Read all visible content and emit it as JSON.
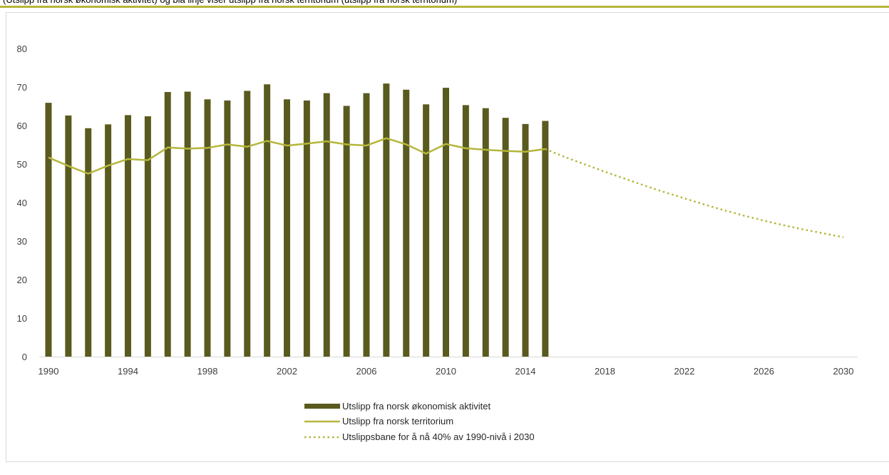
{
  "page": {
    "top_text": "(Utslipp fra norsk økonomisk aktivitet) og blå linje viser utslipp fra norsk territorium (utslipp fra norsk territorium)",
    "accent_color": "#b5b63c"
  },
  "colors": {
    "bar": "#595a1e",
    "line": "#b5b63c",
    "path": "#b5b63c",
    "axis": "#d9d9d9",
    "frame": "#d9d9d9"
  },
  "chart_data": {
    "type": "bar",
    "ylim": [
      0,
      80
    ],
    "yticks": [
      0,
      10,
      20,
      30,
      40,
      50,
      60,
      70,
      80
    ],
    "xlim": [
      1990,
      2030
    ],
    "xticks": [
      1990,
      1994,
      1998,
      2002,
      2006,
      2010,
      2014,
      2018,
      2022,
      2026,
      2030
    ],
    "grid": false,
    "legend_position": "bottom",
    "series": [
      {
        "name": "Utslipp fra norsk økonomisk aktivitet",
        "kind": "bar",
        "x": [
          1990,
          1991,
          1992,
          1993,
          1994,
          1995,
          1996,
          1997,
          1998,
          1999,
          2000,
          2001,
          2002,
          2003,
          2004,
          2005,
          2006,
          2007,
          2008,
          2009,
          2010,
          2011,
          2012,
          2013,
          2014,
          2015
        ],
        "values": [
          65.9,
          62.6,
          59.3,
          60.3,
          62.7,
          62.4,
          68.7,
          68.8,
          66.8,
          66.5,
          69.0,
          70.7,
          66.8,
          66.5,
          68.4,
          65.1,
          68.4,
          70.9,
          69.3,
          65.5,
          69.8,
          65.3,
          64.5,
          62.0,
          60.4,
          61.2
        ]
      },
      {
        "name": "Utslipp fra norsk territorium",
        "kind": "line",
        "x": [
          1990,
          1991,
          1992,
          1993,
          1994,
          1995,
          1996,
          1997,
          1998,
          1999,
          2000,
          2001,
          2002,
          2003,
          2004,
          2005,
          2006,
          2007,
          2008,
          2009,
          2010,
          2011,
          2012,
          2013,
          2014,
          2015
        ],
        "values": [
          51.7,
          49.5,
          47.5,
          49.6,
          51.3,
          51.0,
          54.3,
          54.0,
          54.2,
          55.1,
          54.5,
          56.0,
          54.8,
          55.3,
          55.9,
          55.1,
          54.8,
          56.7,
          55.1,
          52.7,
          55.2,
          54.1,
          53.7,
          53.4,
          53.2,
          53.9
        ]
      },
      {
        "name": "Utslippsbane for å nå 40% av 1990-nivå i 2030",
        "kind": "dotted-line",
        "x": [
          2015,
          2016,
          2017,
          2018,
          2019,
          2020,
          2021,
          2022,
          2023,
          2024,
          2025,
          2026,
          2027,
          2028,
          2029,
          2030
        ],
        "values": [
          53.9,
          51.8,
          49.9,
          48.0,
          46.2,
          44.4,
          42.7,
          41.1,
          39.5,
          38.0,
          36.6,
          35.3,
          34.1,
          33.0,
          32.0,
          31.0
        ]
      }
    ]
  }
}
